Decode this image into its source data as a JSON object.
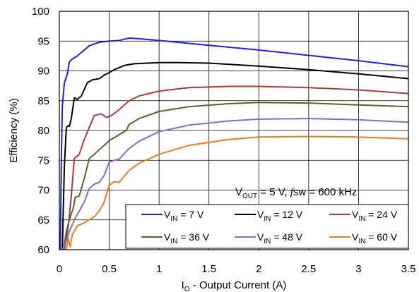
{
  "chart_data": {
    "type": "line",
    "xlabel_main": "I",
    "xlabel_sub": "O",
    "xlabel_rest": " - Output Current (A)",
    "ylabel": "Efficiency (%)",
    "xlim": [
      0,
      3.5
    ],
    "ylim": [
      60,
      100
    ],
    "x_ticks": [
      "0",
      "0.5",
      "1",
      "1.5",
      "2",
      "2.5",
      "3",
      "3.5"
    ],
    "y_ticks": [
      "60",
      "65",
      "70",
      "75",
      "80",
      "85",
      "90",
      "95",
      "100"
    ],
    "grid": true,
    "annotation": {
      "v_main": "V",
      "v_sub": "OUT",
      "v_rest": " = 5 V, ",
      "f_italic": "f",
      "f_rest": "sw = 600 kHz"
    },
    "legend_position": "bottom-right",
    "series": [
      {
        "name": "VIN = 7 V",
        "label_main": "V",
        "label_sub": "IN",
        "label_rest": " = 7 V",
        "color": "#1f1fe6",
        "points": [
          [
            0.01,
            60
          ],
          [
            0.02,
            75
          ],
          [
            0.03,
            84
          ],
          [
            0.05,
            88
          ],
          [
            0.08,
            89.5
          ],
          [
            0.1,
            91.5
          ],
          [
            0.13,
            92
          ],
          [
            0.18,
            92.5
          ],
          [
            0.25,
            93.5
          ],
          [
            0.3,
            94.2
          ],
          [
            0.4,
            94.8
          ],
          [
            0.5,
            95
          ],
          [
            0.6,
            95.1
          ],
          [
            0.65,
            95.3
          ],
          [
            0.7,
            95.5
          ],
          [
            0.8,
            95.4
          ],
          [
            1,
            95.1
          ],
          [
            1.5,
            94.3
          ],
          [
            2,
            93.5
          ],
          [
            2.5,
            92.6
          ],
          [
            3,
            91.7
          ],
          [
            3.5,
            90.7
          ]
        ]
      },
      {
        "name": "VIN = 12 V",
        "label_main": "V",
        "label_sub": "IN",
        "label_rest": " = 12 V",
        "color": "#000000",
        "points": [
          [
            0.03,
            60
          ],
          [
            0.05,
            74
          ],
          [
            0.07,
            80.5
          ],
          [
            0.09,
            80.8
          ],
          [
            0.1,
            80.7
          ],
          [
            0.12,
            82
          ],
          [
            0.15,
            85.5
          ],
          [
            0.18,
            85.2
          ],
          [
            0.22,
            85.8
          ],
          [
            0.28,
            88
          ],
          [
            0.33,
            88.5
          ],
          [
            0.4,
            88.7
          ],
          [
            0.45,
            89.3
          ],
          [
            0.5,
            89.7
          ],
          [
            0.55,
            90.2
          ],
          [
            0.65,
            90.9
          ],
          [
            0.75,
            91.2
          ],
          [
            1,
            91.4
          ],
          [
            1.2,
            91.4
          ],
          [
            1.5,
            91.3
          ],
          [
            2,
            90.8
          ],
          [
            2.5,
            90.2
          ],
          [
            3,
            89.5
          ],
          [
            3.5,
            88.7
          ]
        ]
      },
      {
        "name": "VIN = 24 V",
        "label_main": "V",
        "label_sub": "IN",
        "label_rest": " = 24 V",
        "color": "#b03a3a",
        "points": [
          [
            0.05,
            60
          ],
          [
            0.07,
            62
          ],
          [
            0.09,
            64
          ],
          [
            0.12,
            69
          ],
          [
            0.15,
            75.3
          ],
          [
            0.2,
            76
          ],
          [
            0.25,
            78.5
          ],
          [
            0.3,
            80.5
          ],
          [
            0.35,
            82.5
          ],
          [
            0.42,
            82.8
          ],
          [
            0.47,
            82.2
          ],
          [
            0.52,
            82.5
          ],
          [
            0.6,
            83.5
          ],
          [
            0.7,
            85
          ],
          [
            0.8,
            85.8
          ],
          [
            1,
            86.6
          ],
          [
            1.3,
            87.2
          ],
          [
            1.7,
            87.4
          ],
          [
            2,
            87.4
          ],
          [
            2.5,
            87.2
          ],
          [
            3,
            86.8
          ],
          [
            3.5,
            86.2
          ]
        ]
      },
      {
        "name": "VIN = 36 V",
        "label_main": "V",
        "label_sub": "IN",
        "label_rest": " = 36 V",
        "color": "#4a6b2a",
        "points": [
          [
            0.04,
            60
          ],
          [
            0.07,
            63
          ],
          [
            0.1,
            65
          ],
          [
            0.14,
            67
          ],
          [
            0.16,
            68.8
          ],
          [
            0.2,
            69
          ],
          [
            0.25,
            72
          ],
          [
            0.3,
            75.3
          ],
          [
            0.35,
            76
          ],
          [
            0.4,
            76.8
          ],
          [
            0.45,
            77.5
          ],
          [
            0.5,
            78.3
          ],
          [
            0.6,
            79.3
          ],
          [
            0.67,
            80
          ],
          [
            0.7,
            81
          ],
          [
            0.8,
            82
          ],
          [
            1,
            83.2
          ],
          [
            1.3,
            84
          ],
          [
            1.7,
            84.5
          ],
          [
            2,
            84.7
          ],
          [
            2.5,
            84.6
          ],
          [
            3,
            84.3
          ],
          [
            3.5,
            84
          ]
        ]
      },
      {
        "name": "VIN = 48 V",
        "label_main": "V",
        "label_sub": "IN",
        "label_rest": " = 48 V",
        "color": "#8e6ab8",
        "points": [
          [
            0.03,
            60
          ],
          [
            0.06,
            61
          ],
          [
            0.1,
            63
          ],
          [
            0.15,
            65
          ],
          [
            0.2,
            66.5
          ],
          [
            0.25,
            68
          ],
          [
            0.3,
            70.3
          ],
          [
            0.35,
            71
          ],
          [
            0.4,
            71.3
          ],
          [
            0.45,
            72.5
          ],
          [
            0.5,
            74.7
          ],
          [
            0.55,
            75
          ],
          [
            0.6,
            75.2
          ],
          [
            0.7,
            77
          ],
          [
            0.8,
            78.2
          ],
          [
            1,
            79.8
          ],
          [
            1.3,
            80.9
          ],
          [
            1.7,
            81.6
          ],
          [
            2,
            81.9
          ],
          [
            2.5,
            82
          ],
          [
            3,
            81.8
          ],
          [
            3.5,
            81.4
          ]
        ]
      },
      {
        "name": "VIN = 60 V",
        "label_main": "V",
        "label_sub": "IN",
        "label_rest": " = 60 V",
        "color": "#f07b1e",
        "points": [
          [
            0.07,
            60
          ],
          [
            0.09,
            62
          ],
          [
            0.1,
            61
          ],
          [
            0.11,
            60.5
          ],
          [
            0.13,
            62.5
          ],
          [
            0.18,
            64
          ],
          [
            0.25,
            64.5
          ],
          [
            0.3,
            65
          ],
          [
            0.35,
            65.5
          ],
          [
            0.4,
            66.5
          ],
          [
            0.45,
            68
          ],
          [
            0.5,
            70.8
          ],
          [
            0.55,
            71.4
          ],
          [
            0.6,
            71.3
          ],
          [
            0.65,
            72.3
          ],
          [
            0.7,
            73.3
          ],
          [
            0.8,
            74.5
          ],
          [
            1,
            76
          ],
          [
            1.3,
            77.5
          ],
          [
            1.7,
            78.5
          ],
          [
            2,
            78.9
          ],
          [
            2.5,
            79
          ],
          [
            3,
            78.9
          ],
          [
            3.5,
            78.6
          ]
        ]
      }
    ]
  }
}
